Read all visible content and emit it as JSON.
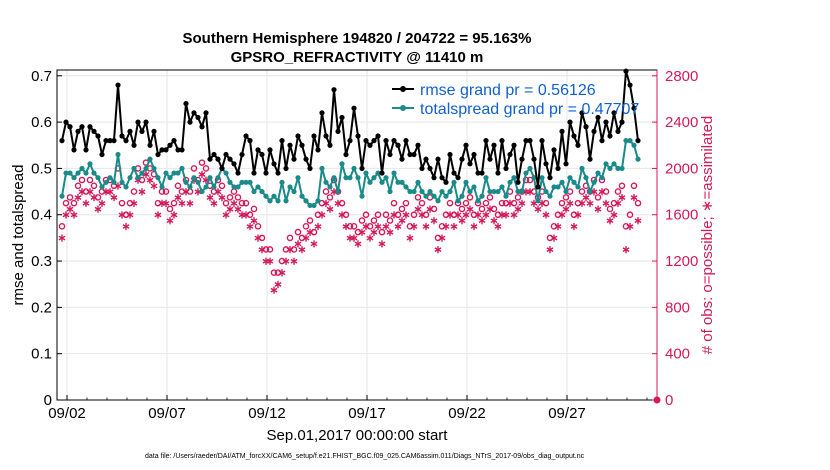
{
  "chart_data": {
    "type": "line",
    "title_line1": "Southern Hemisphere 194820 / 204722 = 95.163%",
    "title_line2": "GPSRO_REFRACTIVITY @ 11410 m",
    "xlabel": "Sep.01,2017 00:00:00 start",
    "ylabel_left": "rmse and totalspread",
    "ylabel_right": "# of obs: o=possible; ∗=assimilated",
    "footnote": "data file: /Users/raeder/DAI/ATM_forcXX/CAM6_setup/f.e21.FHIST_BGC.f09_025.CAM6assim.011/Diags_NTrS_2017-09/obs_diag_output.nc",
    "xlim": [
      1.5,
      31.5
    ],
    "ylim_left": [
      0,
      0.7125
    ],
    "ylim_right": [
      0,
      2850
    ],
    "x_ticks": [
      2,
      7,
      12,
      17,
      22,
      27
    ],
    "x_tick_labels": [
      "09/02",
      "09/07",
      "09/12",
      "09/17",
      "09/22",
      "09/27"
    ],
    "y_left_ticks": [
      0,
      0.1,
      0.2,
      0.3,
      0.4,
      0.5,
      0.6,
      0.7
    ],
    "y_left_tick_labels": [
      "0",
      "0.1",
      "0.2",
      "0.3",
      "0.4",
      "0.5",
      "0.6",
      "0.7"
    ],
    "y_right_ticks": [
      0,
      400,
      800,
      1200,
      1600,
      2000,
      2400,
      2800
    ],
    "y_right_tick_labels": [
      "0",
      "400",
      "800",
      "1200",
      "1600",
      "2000",
      "2400",
      "2800"
    ],
    "grid": true,
    "legend_position": "top-right",
    "colors": {
      "rmse": "#000000",
      "spread": "#1a8a8a",
      "obs": "#d41a5a"
    },
    "series": [
      {
        "name": "rmse grand pr = 0.56126",
        "axis": "left",
        "values": [
          0.56,
          0.6,
          0.59,
          0.54,
          0.58,
          0.59,
          0.54,
          0.59,
          0.58,
          0.57,
          0.53,
          0.56,
          0.56,
          0.56,
          0.68,
          0.57,
          0.56,
          0.58,
          0.55,
          0.6,
          0.58,
          0.6,
          0.55,
          0.58,
          0.53,
          0.54,
          0.54,
          0.55,
          0.56,
          0.54,
          0.54,
          0.64,
          0.6,
          0.62,
          0.61,
          0.59,
          0.62,
          0.52,
          0.53,
          0.52,
          0.5,
          0.53,
          0.52,
          0.51,
          0.49,
          0.53,
          0.57,
          0.56,
          0.49,
          0.54,
          0.53,
          0.49,
          0.54,
          0.51,
          0.49,
          0.56,
          0.5,
          0.55,
          0.52,
          0.57,
          0.55,
          0.52,
          0.5,
          0.57,
          0.54,
          0.62,
          0.57,
          0.55,
          0.67,
          0.58,
          0.61,
          0.53,
          0.56,
          0.63,
          0.57,
          0.5,
          0.56,
          0.55,
          0.56,
          0.57,
          0.49,
          0.56,
          0.53,
          0.56,
          0.55,
          0.52,
          0.56,
          0.53,
          0.53,
          0.55,
          0.5,
          0.52,
          0.5,
          0.48,
          0.52,
          0.48,
          0.47,
          0.53,
          0.49,
          0.48,
          0.52,
          0.55,
          0.51,
          0.53,
          0.49,
          0.49,
          0.56,
          0.52,
          0.55,
          0.49,
          0.56,
          0.5,
          0.53,
          0.55,
          0.47,
          0.52,
          0.56,
          0.56,
          0.52,
          0.46,
          0.56,
          0.51,
          0.48,
          0.54,
          0.5,
          0.58,
          0.51,
          0.6,
          0.57,
          0.55,
          0.62,
          0.59,
          0.52,
          0.58,
          0.61,
          0.56,
          0.6,
          0.57,
          0.62,
          0.58,
          0.6,
          0.71,
          0.68,
          0.63,
          0.56
        ]
      },
      {
        "name": "totalspread grand pr = 0.47707",
        "axis": "left",
        "values": [
          0.44,
          0.49,
          0.49,
          0.48,
          0.49,
          0.5,
          0.49,
          0.51,
          0.49,
          0.48,
          0.46,
          0.47,
          0.48,
          0.47,
          0.53,
          0.47,
          0.46,
          0.48,
          0.5,
          0.48,
          0.49,
          0.5,
          0.52,
          0.5,
          0.48,
          0.46,
          0.49,
          0.48,
          0.49,
          0.49,
          0.5,
          0.47,
          0.46,
          0.48,
          0.47,
          0.45,
          0.46,
          0.48,
          0.46,
          0.48,
          0.5,
          0.49,
          0.47,
          0.46,
          0.46,
          0.47,
          0.47,
          0.47,
          0.45,
          0.46,
          0.45,
          0.44,
          0.43,
          0.44,
          0.43,
          0.47,
          0.43,
          0.46,
          0.45,
          0.48,
          0.44,
          0.43,
          0.42,
          0.42,
          0.43,
          0.5,
          0.47,
          0.46,
          0.48,
          0.45,
          0.51,
          0.48,
          0.48,
          0.5,
          0.48,
          0.44,
          0.49,
          0.47,
          0.48,
          0.49,
          0.47,
          0.48,
          0.45,
          0.49,
          0.47,
          0.47,
          0.46,
          0.45,
          0.45,
          0.47,
          0.45,
          0.44,
          0.45,
          0.44,
          0.43,
          0.45,
          0.44,
          0.45,
          0.47,
          0.43,
          0.44,
          0.47,
          0.45,
          0.46,
          0.43,
          0.44,
          0.48,
          0.45,
          0.45,
          0.45,
          0.46,
          0.44,
          0.47,
          0.48,
          0.45,
          0.45,
          0.49,
          0.5,
          0.48,
          0.43,
          0.48,
          0.45,
          0.44,
          0.46,
          0.46,
          0.47,
          0.45,
          0.48,
          0.47,
          0.46,
          0.5,
          0.48,
          0.45,
          0.47,
          0.49,
          0.48,
          0.51,
          0.5,
          0.51,
          0.5,
          0.5,
          0.56,
          0.56,
          0.55,
          0.52
        ]
      },
      {
        "name": "obs possible",
        "axis": "right",
        "values": [
          1500,
          1700,
          1750,
          1700,
          1850,
          1900,
          1800,
          1900,
          1850,
          1750,
          1800,
          1900,
          1900,
          1850,
          2000,
          1700,
          1600,
          1700,
          1800,
          2000,
          1900,
          2050,
          2000,
          1950,
          1700,
          1800,
          1800,
          1650,
          1700,
          1850,
          1800,
          1900,
          1800,
          2000,
          1900,
          2050,
          2000,
          1850,
          1800,
          1900,
          1850,
          1700,
          1750,
          1800,
          1750,
          1700,
          1700,
          1600,
          1650,
          1500,
          1400,
          1300,
          1300,
          1100,
          1100,
          1200,
          1300,
          1400,
          1300,
          1450,
          1400,
          1500,
          1550,
          1450,
          1600,
          1700,
          1800,
          1750,
          1900,
          1800,
          1700,
          1600,
          1500,
          1500,
          1450,
          1550,
          1600,
          1500,
          1550,
          1600,
          1450,
          1600,
          1550,
          1700,
          1600,
          1650,
          1700,
          1500,
          1600,
          1750,
          1700,
          1600,
          1750,
          1650,
          1400,
          1500,
          1600,
          1700,
          1600,
          1700,
          1650,
          1700,
          1750,
          1600,
          1700,
          1650,
          1700,
          1750,
          1650,
          1600,
          1700,
          1700,
          1800,
          1700,
          1750,
          1800,
          1900,
          1900,
          1800,
          1750,
          1800,
          1700,
          1400,
          1500,
          1600,
          1700,
          1750,
          1800,
          1600,
          1700,
          1800,
          1850,
          1800,
          1900,
          1750,
          1900,
          1800,
          1650,
          1700,
          1800,
          1850,
          1500,
          1600,
          1850,
          1700
        ]
      },
      {
        "name": "obs assimilated",
        "axis": "right",
        "values": [
          1450,
          1650,
          1700,
          1650,
          1800,
          1850,
          1750,
          1850,
          1800,
          1700,
          1750,
          1850,
          1850,
          1800,
          1900,
          1650,
          1550,
          1650,
          1750,
          1950,
          1850,
          2000,
          1950,
          1900,
          1650,
          1750,
          1750,
          1600,
          1650,
          1800,
          1750,
          1850,
          1750,
          1950,
          1850,
          2000,
          1950,
          1800,
          1750,
          1850,
          1800,
          1650,
          1700,
          1750,
          1700,
          1650,
          1650,
          1550,
          1600,
          1450,
          1350,
          1250,
          1250,
          1000,
          1050,
          1150,
          1250,
          1350,
          1250,
          1400,
          1350,
          1450,
          1500,
          1400,
          1550,
          1650,
          1750,
          1700,
          1850,
          1750,
          1650,
          1550,
          1450,
          1450,
          1400,
          1500,
          1550,
          1450,
          1500,
          1550,
          1400,
          1550,
          1500,
          1650,
          1550,
          1600,
          1650,
          1450,
          1550,
          1700,
          1650,
          1550,
          1700,
          1600,
          1350,
          1450,
          1550,
          1650,
          1550,
          1650,
          1600,
          1650,
          1700,
          1550,
          1650,
          1600,
          1650,
          1700,
          1600,
          1550,
          1650,
          1650,
          1750,
          1650,
          1700,
          1750,
          1850,
          1850,
          1750,
          1700,
          1750,
          1650,
          1350,
          1450,
          1550,
          1650,
          1700,
          1750,
          1550,
          1650,
          1750,
          1800,
          1750,
          1850,
          1700,
          1850,
          1750,
          1600,
          1650,
          1750,
          1800,
          1350,
          1550,
          1800,
          1600
        ]
      }
    ]
  }
}
